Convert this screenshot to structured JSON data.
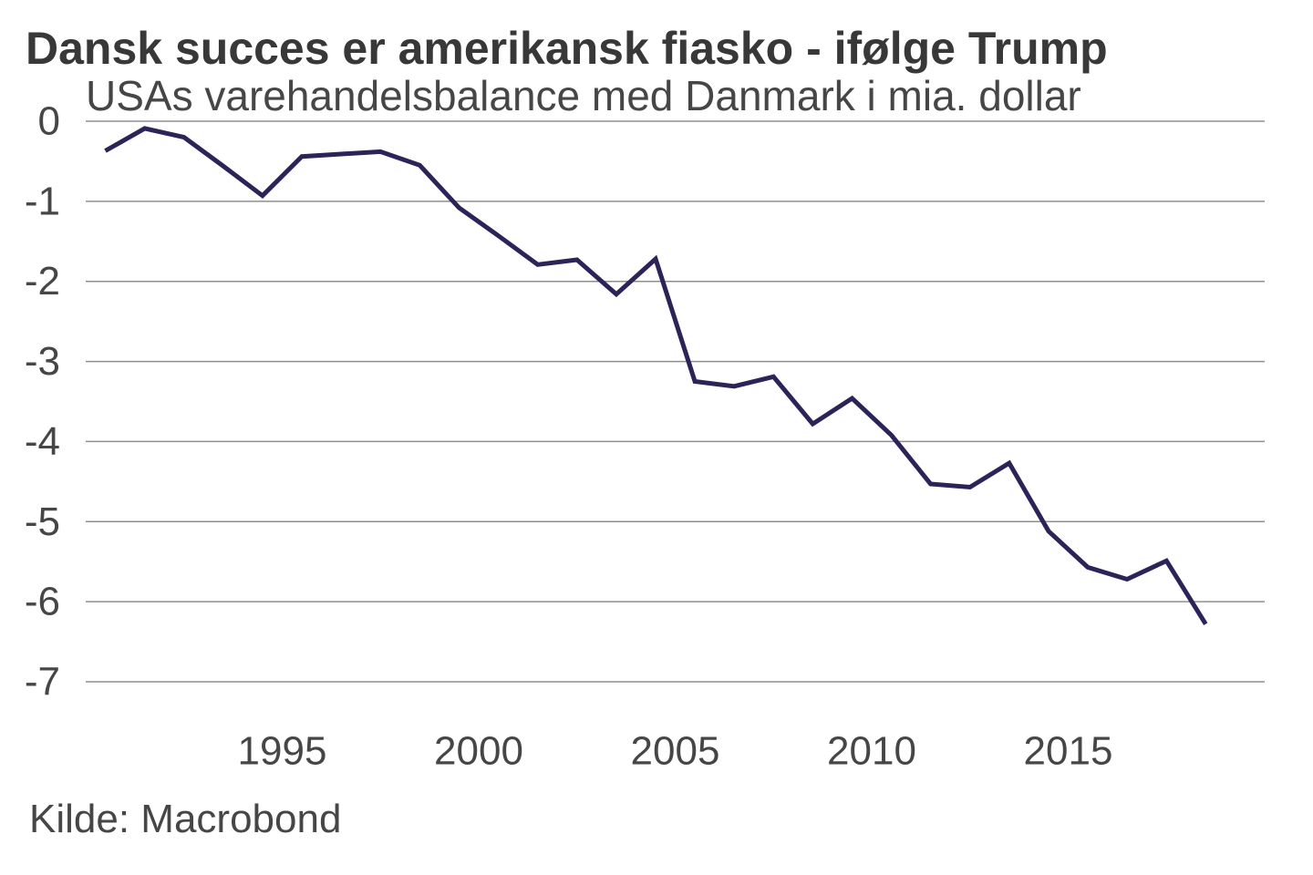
{
  "header": {
    "title": "Dansk succes er amerikansk fiasko - ifølge Trump",
    "subtitle": "USAs varehandelsbalance med Danmark i mia. dollar"
  },
  "footer": {
    "source": "Kilde: Macrobond"
  },
  "chart_data": {
    "type": "line",
    "title": "Dansk succes er amerikansk fiasko - ifølge Trump",
    "subtitle": "USAs varehandelsbalance med Danmark i mia. dollar",
    "source": "Kilde: Macrobond",
    "x": [
      1991,
      1992,
      1993,
      1994,
      1995,
      1996,
      1997,
      1998,
      1999,
      2000,
      2001,
      2002,
      2003,
      2004,
      2005,
      2006,
      2007,
      2008,
      2009,
      2010,
      2011,
      2012,
      2013,
      2014,
      2015,
      2016,
      2017,
      2018,
      2019
    ],
    "values": [
      -0.37,
      -0.09,
      -0.2,
      -0.56,
      -0.93,
      -0.44,
      -0.41,
      -0.38,
      -0.55,
      -1.08,
      -1.43,
      -1.79,
      -1.73,
      -2.16,
      -1.72,
      -3.25,
      -3.31,
      -3.19,
      -3.78,
      -3.46,
      -3.92,
      -4.53,
      -4.57,
      -4.27,
      -5.12,
      -5.57,
      -5.72,
      -5.49,
      -6.28
    ],
    "xticks": [
      1995,
      2000,
      2005,
      2010,
      2015
    ],
    "yticks": [
      0,
      -1,
      -2,
      -3,
      -4,
      -5,
      -6,
      -7
    ],
    "xlim": [
      1990.5,
      2020.5
    ],
    "ylim": [
      -7,
      0
    ],
    "grid": "horizontal",
    "legend": "none",
    "line_color": "#2a2458",
    "grid_color": "#8f8f8f",
    "text_color": "#464646"
  }
}
